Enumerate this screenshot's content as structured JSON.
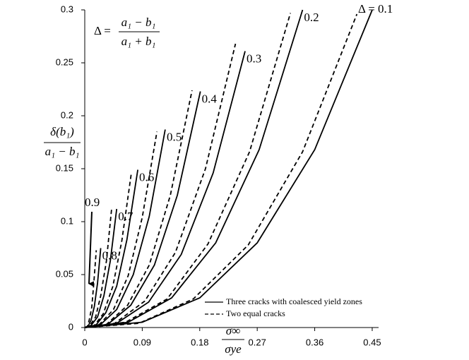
{
  "chart_data": {
    "type": "line",
    "formula": {
      "lhs": "Δ =",
      "numerator": "a₁ − b₁",
      "denominator": "a₁ + b₁"
    },
    "y_label": {
      "numerator": "δ(b₁)",
      "denominator": "a₁ − b₁"
    },
    "x_label": {
      "numerator": "σ∞",
      "denominator": "σye"
    },
    "xlim": [
      0,
      0.46
    ],
    "ylim": [
      0,
      0.3
    ],
    "xticks": [
      0,
      0.09,
      0.18,
      0.27,
      0.36,
      0.45
    ],
    "yticks": [
      0,
      0.05,
      0.1,
      0.15,
      0.2,
      0.25,
      0.3
    ],
    "color": "#000000",
    "legend": [
      {
        "name": "Three cracks with coalesced yield zones",
        "dashed": false
      },
      {
        "name": "Two equal cracks",
        "dashed": true
      }
    ],
    "annotations": [
      "0.9"
    ],
    "series": [
      {
        "label": "Δ = 0.1",
        "dashed": false,
        "x": [
          0,
          0.09,
          0.18,
          0.27,
          0.36,
          0.45
        ],
        "values": [
          0,
          0.005,
          0.028,
          0.08,
          0.168,
          0.3
        ]
      },
      {
        "dashed": true,
        "x": [
          0,
          0.085,
          0.17,
          0.256,
          0.341,
          0.426
        ],
        "values": [
          0,
          0.004,
          0.027,
          0.078,
          0.166,
          0.296
        ]
      },
      {
        "label": "0.2",
        "dashed": false,
        "x": [
          0,
          0.068,
          0.136,
          0.205,
          0.273,
          0.341
        ],
        "values": [
          0,
          0.005,
          0.028,
          0.08,
          0.168,
          0.3
        ]
      },
      {
        "dashed": true,
        "x": [
          0,
          0.064,
          0.129,
          0.193,
          0.258,
          0.322
        ],
        "values": [
          0,
          0.005,
          0.027,
          0.079,
          0.166,
          0.297
        ]
      },
      {
        "label": "0.3",
        "dashed": false,
        "x": [
          0,
          0.05,
          0.1,
          0.151,
          0.201,
          0.251
        ],
        "values": [
          0,
          0.004,
          0.024,
          0.069,
          0.146,
          0.261
        ]
      },
      {
        "dashed": true,
        "x": [
          0,
          0.047,
          0.094,
          0.142,
          0.189,
          0.236
        ],
        "values": [
          0,
          0.004,
          0.025,
          0.071,
          0.15,
          0.268
        ]
      },
      {
        "label": "0.4",
        "dashed": false,
        "x": [
          0,
          0.036,
          0.072,
          0.109,
          0.145,
          0.181
        ],
        "values": [
          0,
          0.003,
          0.021,
          0.059,
          0.125,
          0.223
        ]
      },
      {
        "dashed": true,
        "x": [
          0,
          0.034,
          0.067,
          0.101,
          0.134,
          0.168
        ],
        "values": [
          0,
          0.003,
          0.021,
          0.059,
          0.125,
          0.224
        ]
      },
      {
        "label": "0.5",
        "dashed": false,
        "x": [
          0,
          0.025,
          0.05,
          0.076,
          0.101,
          0.126
        ],
        "values": [
          0,
          0.003,
          0.017,
          0.05,
          0.105,
          0.187
        ]
      },
      {
        "dashed": true,
        "x": [
          0,
          0.023,
          0.045,
          0.068,
          0.09,
          0.113
        ],
        "values": [
          0,
          0.003,
          0.017,
          0.049,
          0.104,
          0.185
        ]
      },
      {
        "label": "0.6",
        "dashed": false,
        "x": [
          0,
          0.017,
          0.033,
          0.05,
          0.066,
          0.083
        ],
        "values": [
          0,
          0.002,
          0.014,
          0.039,
          0.083,
          0.149
        ]
      },
      {
        "dashed": true,
        "x": [
          0,
          0.015,
          0.029,
          0.044,
          0.058,
          0.073
        ],
        "values": [
          0,
          0.002,
          0.013,
          0.039,
          0.082,
          0.146
        ]
      },
      {
        "label": "0.7",
        "dashed": false,
        "x": [
          0,
          0.01,
          0.02,
          0.03,
          0.04,
          0.05
        ],
        "values": [
          0,
          0.002,
          0.01,
          0.03,
          0.063,
          0.112
        ]
      },
      {
        "dashed": true,
        "x": [
          0,
          0.008,
          0.017,
          0.025,
          0.034,
          0.042
        ],
        "values": [
          0,
          0.002,
          0.01,
          0.03,
          0.063,
          0.112
        ]
      },
      {
        "label": "0.8",
        "dashed": false,
        "x": [
          0,
          0.005,
          0.01,
          0.015,
          0.02,
          0.025
        ],
        "values": [
          0,
          0.001,
          0.007,
          0.02,
          0.042,
          0.075
        ]
      },
      {
        "dashed": true,
        "x": [
          0,
          0.004,
          0.007,
          0.011,
          0.014,
          0.018
        ],
        "values": [
          0,
          0.001,
          0.007,
          0.019,
          0.041,
          0.073
        ]
      }
    ]
  }
}
